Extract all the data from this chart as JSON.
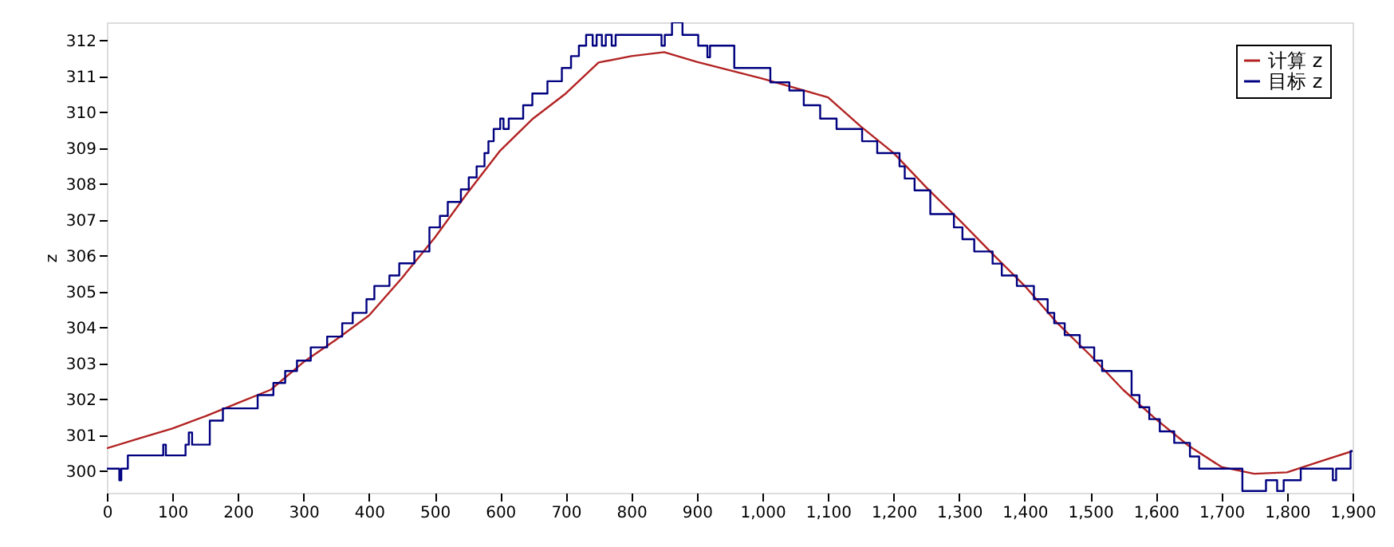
{
  "chart_data": {
    "type": "line",
    "ylabel": "z",
    "xlim": [
      0,
      1900
    ],
    "ylim": [
      299.4,
      312.5
    ],
    "xticks": [
      0,
      100,
      200,
      300,
      400,
      500,
      600,
      700,
      800,
      900,
      {
        "value": 1000,
        "label": "1,000"
      },
      {
        "value": 1100,
        "label": "1,100"
      },
      {
        "value": 1200,
        "label": "1,200"
      },
      {
        "value": 1300,
        "label": "1,300"
      },
      {
        "value": 1400,
        "label": "1,400"
      },
      {
        "value": 1500,
        "label": "1,500"
      },
      {
        "value": 1600,
        "label": "1,600"
      },
      {
        "value": 1700,
        "label": "1,700"
      },
      {
        "value": 1800,
        "label": "1,800"
      },
      {
        "value": 1900,
        "label": "1,900"
      }
    ],
    "yticks": [
      300,
      301,
      302,
      303,
      304,
      305,
      306,
      307,
      308,
      309,
      310,
      311,
      312
    ],
    "grid": false,
    "legend": "top right",
    "marker": "none",
    "line_style": "solid",
    "series": [
      {
        "name": "计算 z",
        "color": "#b22222",
        "type": "line",
        "x": [
          0,
          50,
          100,
          150,
          200,
          250,
          300,
          350,
          400,
          450,
          500,
          550,
          600,
          650,
          700,
          750,
          800,
          850,
          900,
          1000,
          1100,
          1150,
          1200,
          1250,
          1300,
          1350,
          1400,
          1450,
          1500,
          1550,
          1600,
          1650,
          1700,
          1750,
          1800,
          1850,
          1900
        ],
        "values": [
          300.64,
          300.92,
          301.19,
          301.53,
          301.9,
          302.27,
          303.04,
          303.67,
          304.34,
          305.38,
          306.5,
          307.75,
          308.93,
          309.82,
          310.52,
          311.38,
          311.56,
          311.67,
          311.4,
          310.93,
          310.41,
          309.6,
          308.86,
          307.9,
          307.0,
          306.07,
          305.16,
          304.12,
          303.23,
          302.27,
          301.45,
          300.71,
          300.12,
          299.93,
          299.97,
          300.27,
          300.56
        ]
      },
      {
        "name": "目标 z",
        "color": "#000080",
        "type": "step",
        "x": [
          0,
          19,
          22,
          32,
          86,
          90,
          120,
          125,
          130,
          157,
          177,
          230,
          254,
          272,
          290,
          311,
          336,
          359,
          375,
          396,
          408,
          431,
          446,
          469,
          492,
          508,
          520,
          540,
          552,
          564,
          576,
          582,
          590,
          600,
          605,
          613,
          619,
          635,
          649,
          672,
          694,
          708,
          720,
          731,
          741,
          747,
          755,
          761,
          770,
          776,
          781,
          846,
          851,
          862,
          878,
          902,
          916,
          920,
          957,
          1012,
          1041,
          1063,
          1088,
          1113,
          1152,
          1175,
          1209,
          1217,
          1232,
          1256,
          1292,
          1305,
          1323,
          1351,
          1365,
          1388,
          1414,
          1435,
          1445,
          1461,
          1484,
          1506,
          1518,
          1563,
          1575,
          1590,
          1606,
          1628,
          1652,
          1666,
          1732,
          1768,
          1785,
          1795,
          1809,
          1821,
          1870,
          1875,
          1897,
          1900
        ],
        "values": [
          300.07,
          299.75,
          300.07,
          300.44,
          300.74,
          300.44,
          300.74,
          301.08,
          300.74,
          301.41,
          301.75,
          302.12,
          302.46,
          302.79,
          303.08,
          303.45,
          303.75,
          304.12,
          304.41,
          304.79,
          305.16,
          305.45,
          305.79,
          306.12,
          306.79,
          307.11,
          307.5,
          307.85,
          308.18,
          308.49,
          308.86,
          309.19,
          309.53,
          309.82,
          309.53,
          309.82,
          309.82,
          310.19,
          310.52,
          310.86,
          311.23,
          311.56,
          311.85,
          312.15,
          311.85,
          312.15,
          311.85,
          312.15,
          311.85,
          312.15,
          312.15,
          311.85,
          312.15,
          312.5,
          312.15,
          311.85,
          311.53,
          311.85,
          311.23,
          310.83,
          310.6,
          310.19,
          309.82,
          309.53,
          309.19,
          308.86,
          308.49,
          308.15,
          307.82,
          307.16,
          306.79,
          306.46,
          306.12,
          305.78,
          305.45,
          305.16,
          304.79,
          304.41,
          304.12,
          303.79,
          303.45,
          303.08,
          302.79,
          302.12,
          301.78,
          301.45,
          301.11,
          300.79,
          300.41,
          300.07,
          299.45,
          299.75,
          299.45,
          299.75,
          299.75,
          300.07,
          299.75,
          300.07,
          300.56,
          300.56
        ]
      }
    ]
  }
}
